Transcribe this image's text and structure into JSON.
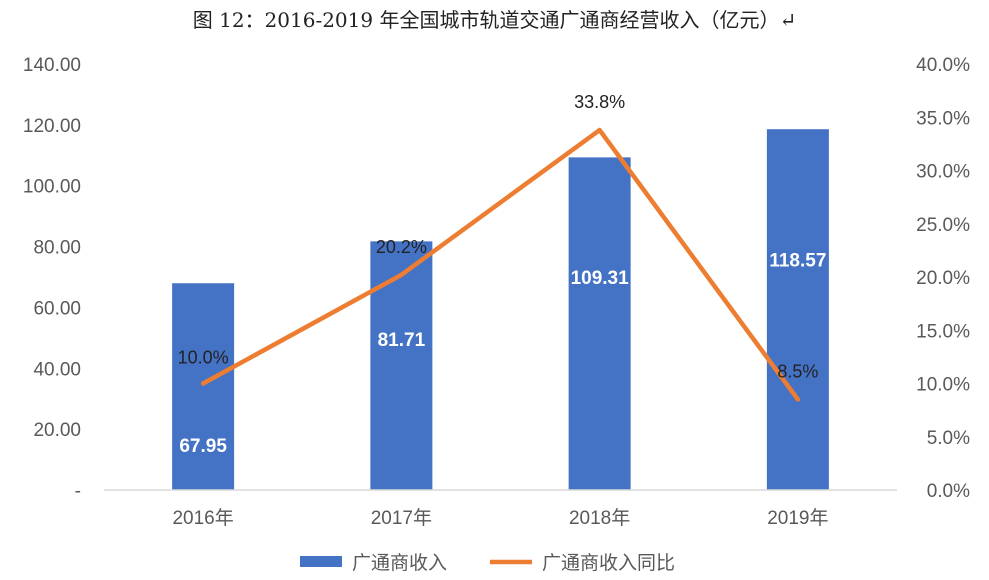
{
  "title": "图 12：2016-2019 年全国城市轨道交通广通商经营收入（亿元）↵",
  "chart_data": {
    "type": "bar",
    "categories": [
      "2016年",
      "2017年",
      "2018年",
      "2019年"
    ],
    "series": [
      {
        "name": "广通商收入",
        "kind": "bar",
        "axis": "left",
        "values": [
          67.95,
          81.71,
          109.31,
          118.57
        ],
        "labels": [
          "67.95",
          "81.71",
          "109.31",
          "118.57"
        ]
      },
      {
        "name": "广通商收入同比",
        "kind": "line",
        "axis": "right",
        "values": [
          10.0,
          20.2,
          33.8,
          8.5
        ],
        "labels": [
          "10.0%",
          "20.2%",
          "33.8%",
          "8.5%"
        ]
      }
    ],
    "y_left": {
      "min": 0,
      "max": 140,
      "ticks": [
        "-",
        "20.00",
        "40.00",
        "60.00",
        "80.00",
        "100.00",
        "120.00",
        "140.00"
      ]
    },
    "y_right": {
      "min": 0,
      "max": 40,
      "ticks": [
        "0.0%",
        "5.0%",
        "10.0%",
        "15.0%",
        "20.0%",
        "25.0%",
        "30.0%",
        "35.0%",
        "40.0%"
      ]
    },
    "legend_position": "bottom",
    "grid": false,
    "colors": {
      "bar": "#4472C4",
      "line": "#ED7D31"
    }
  }
}
